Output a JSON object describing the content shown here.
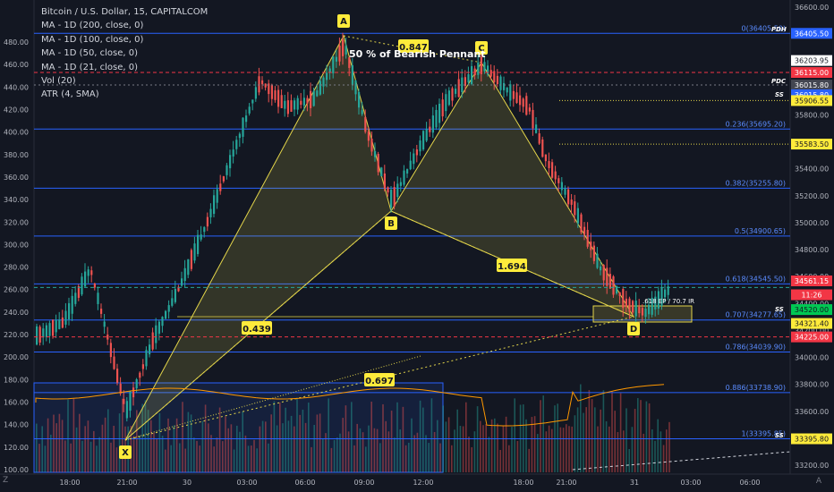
{
  "legend": {
    "title": "Bitcoin / U.S. Dollar, 15, CAPITALCOM",
    "lines": [
      "MA - 1D (200, close, 0)",
      "MA - 1D (100, close, 0)",
      "MA - 1D (50, close, 0)",
      "MA - 1D (21, close, 0)",
      "Vol (20)",
      "ATR (4, SMA)"
    ]
  },
  "chart_data": {
    "type": "candlestick",
    "title": "Bitcoin / U.S. Dollar, 15, CAPITALCOM",
    "annotation": "50 % of Bearish Pennant",
    "x_ticks": [
      "18:00",
      "21:00",
      "30",
      "03:00",
      "06:00",
      "09:00",
      "12:00",
      "18:00",
      "21:00",
      "31",
      "03:00",
      "06:00"
    ],
    "left_ticks": [
      480,
      460,
      440,
      420,
      400,
      380,
      360,
      340,
      320,
      300,
      280,
      260,
      240,
      220,
      200,
      180,
      160,
      140,
      120,
      100
    ],
    "right_ticks": [
      36600,
      36400,
      36200,
      36000,
      35800,
      35600,
      35400,
      35200,
      35000,
      34800,
      34600,
      34400,
      34200,
      34000,
      33800,
      33600,
      33400,
      33200
    ],
    "fib_levels": [
      {
        "label": "0(36405.50)",
        "price": 36405.5
      },
      {
        "label": "0.236(35695.20)",
        "price": 35695.2
      },
      {
        "label": "0.382(35255.80)",
        "price": 35255.8
      },
      {
        "label": "0.5(34900.65)",
        "price": 34900.65
      },
      {
        "label": "0.618(34545.50)",
        "price": 34545.5
      },
      {
        "label": "0.707(34277.65)",
        "price": 34277.65
      },
      {
        "label": "0.786(34039.90)",
        "price": 34039.9
      },
      {
        "label": "0.886(33738.90)",
        "price": 33738.9
      },
      {
        "label": "1(33395.85)",
        "price": 33395.85
      }
    ],
    "harmonic_points": [
      {
        "label": "X",
        "price": 33400
      },
      {
        "label": "A",
        "price": 36420
      },
      {
        "label": "B",
        "price": 35090
      },
      {
        "label": "C",
        "price": 36150
      },
      {
        "label": "D",
        "price": 34330
      }
    ],
    "ratios": [
      "0.847",
      "0.439",
      "1.694",
      "0.697"
    ],
    "d_note": ".618 EP / 70.7 IR",
    "price_tags": [
      {
        "text": "36405.50",
        "bg": "#2962ff",
        "fg": "#ffffff",
        "price": 36405.5
      },
      {
        "text": "36203.95",
        "bg": "#ffffff",
        "fg": "#131722",
        "price": 36204
      },
      {
        "text": "36115.00",
        "bg": "#f23645",
        "fg": "#ffffff",
        "price": 36115
      },
      {
        "text": "36015.80",
        "bg": "#434651",
        "fg": "#ffffff",
        "price": 36022
      },
      {
        "text": "36015.80",
        "bg": "#2962ff",
        "fg": "#ffffff",
        "price": 35950
      },
      {
        "text": "35906.55",
        "bg": "#ffeb3b",
        "fg": "#131722",
        "price": 35906.5
      },
      {
        "text": "35583.50",
        "bg": "#ffeb3b",
        "fg": "#131722",
        "price": 35583.5
      },
      {
        "text": "34561.15",
        "bg": "#f23645",
        "fg": "#ffffff",
        "price": 34568
      },
      {
        "text": "11:26",
        "bg": "#f23645",
        "fg": "#ffffff",
        "price": 34465
      },
      {
        "text": "34520.00",
        "bg": "#00c853",
        "fg": "#131722",
        "price": 34355
      },
      {
        "text": "34321.40",
        "bg": "#ffeb3b",
        "fg": "#131722",
        "price": 34252
      },
      {
        "text": "34225.00",
        "bg": "#f23645",
        "fg": "#ffffff",
        "price": 34152
      },
      {
        "text": "33395.80",
        "bg": "#ffeb3b",
        "fg": "#131722",
        "price": 33395.8
      }
    ],
    "level_marks": [
      "PDH",
      "PDC",
      "SS",
      "SS",
      "SS"
    ]
  },
  "colors": {
    "bg": "#131722",
    "up": "#26a69a",
    "down": "#ef5350",
    "fib": "#2962ff",
    "pattern": "#e3d54a",
    "grid": "#1e222d"
  },
  "footer": {
    "logo": "Z",
    "gear": "A"
  }
}
